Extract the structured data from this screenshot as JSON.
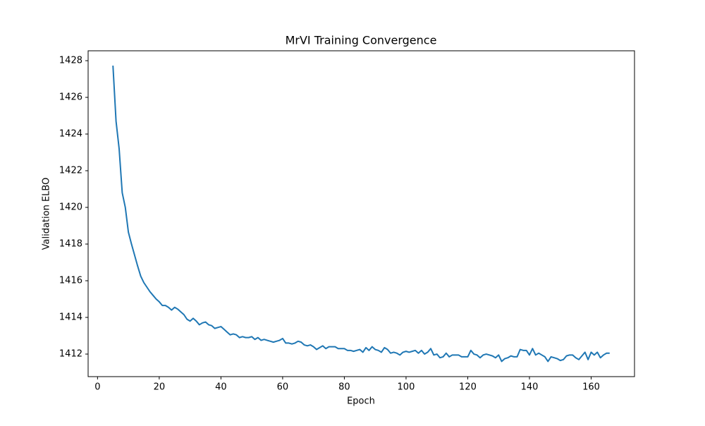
{
  "chart_data": {
    "type": "line",
    "title": "MrVI Training Convergence",
    "x_label": "Epoch",
    "y_label": "Validation ELBO",
    "color": "#1f77b4",
    "x": [
      5,
      6,
      7,
      8,
      9,
      10,
      11,
      12,
      13,
      14,
      15,
      16,
      17,
      18,
      19,
      20,
      21,
      22,
      23,
      24,
      25,
      26,
      27,
      28,
      29,
      30,
      31,
      32,
      33,
      34,
      35,
      36,
      37,
      38,
      39,
      40,
      41,
      42,
      43,
      44,
      45,
      46,
      47,
      48,
      49,
      50,
      51,
      52,
      53,
      54,
      55,
      56,
      57,
      58,
      59,
      60,
      61,
      62,
      63,
      64,
      65,
      66,
      67,
      68,
      69,
      70,
      71,
      72,
      73,
      74,
      75,
      76,
      77,
      78,
      79,
      80,
      81,
      82,
      83,
      84,
      85,
      86,
      87,
      88,
      89,
      90,
      91,
      92,
      93,
      94,
      95,
      96,
      97,
      98,
      99,
      100,
      101,
      102,
      103,
      104,
      105,
      106,
      107,
      108,
      109,
      110,
      111,
      112,
      113,
      114,
      115,
      116,
      117,
      118,
      119,
      120,
      121,
      122,
      123,
      124,
      125,
      126,
      127,
      128,
      129,
      130,
      131,
      132,
      133,
      134,
      135,
      136,
      137,
      138,
      139,
      140,
      141,
      142,
      143,
      144,
      145,
      146,
      147,
      148,
      149,
      150,
      151,
      152,
      153,
      154,
      155,
      156,
      157,
      158,
      159,
      160,
      161,
      162,
      163,
      164,
      165,
      166
    ],
    "values": [
      1427.73,
      1424.7,
      1423.2,
      1420.8,
      1420.0,
      1418.65,
      1418.0,
      1417.4,
      1416.8,
      1416.25,
      1415.9,
      1415.65,
      1415.4,
      1415.2,
      1415.0,
      1414.85,
      1414.65,
      1414.65,
      1414.55,
      1414.4,
      1414.55,
      1414.45,
      1414.3,
      1414.15,
      1413.9,
      1413.8,
      1413.95,
      1413.8,
      1413.6,
      1413.7,
      1413.75,
      1413.6,
      1413.55,
      1413.4,
      1413.45,
      1413.5,
      1413.35,
      1413.2,
      1413.05,
      1413.1,
      1413.05,
      1412.9,
      1412.95,
      1412.9,
      1412.9,
      1412.95,
      1412.8,
      1412.9,
      1412.75,
      1412.8,
      1412.75,
      1412.7,
      1412.65,
      1412.7,
      1412.75,
      1412.85,
      1412.6,
      1412.6,
      1412.55,
      1412.6,
      1412.7,
      1412.65,
      1412.5,
      1412.45,
      1412.5,
      1412.4,
      1412.25,
      1412.35,
      1412.45,
      1412.3,
      1412.4,
      1412.4,
      1412.4,
      1412.3,
      1412.3,
      1412.3,
      1412.2,
      1412.2,
      1412.15,
      1412.2,
      1412.25,
      1412.1,
      1412.35,
      1412.2,
      1412.4,
      1412.25,
      1412.2,
      1412.1,
      1412.35,
      1412.25,
      1412.05,
      1412.1,
      1412.05,
      1411.95,
      1412.1,
      1412.15,
      1412.1,
      1412.15,
      1412.2,
      1412.05,
      1412.2,
      1412.0,
      1412.1,
      1412.3,
      1411.95,
      1412.0,
      1411.8,
      1411.85,
      1412.05,
      1411.85,
      1411.95,
      1411.95,
      1411.95,
      1411.85,
      1411.85,
      1411.85,
      1412.2,
      1412.0,
      1411.95,
      1411.8,
      1411.95,
      1412.0,
      1411.95,
      1411.9,
      1411.8,
      1411.95,
      1411.6,
      1411.75,
      1411.8,
      1411.9,
      1411.85,
      1411.85,
      1412.25,
      1412.2,
      1412.2,
      1411.95,
      1412.3,
      1411.95,
      1412.05,
      1411.95,
      1411.85,
      1411.6,
      1411.85,
      1411.8,
      1411.75,
      1411.65,
      1411.7,
      1411.9,
      1411.95,
      1411.95,
      1411.8,
      1411.7,
      1411.9,
      1412.1,
      1411.7,
      1412.1,
      1411.95,
      1412.1,
      1411.8,
      1411.95,
      1412.05,
      1412.05
    ],
    "xlim": [
      -3.05,
      174.05
    ],
    "xticks": [
      0,
      20,
      40,
      60,
      80,
      100,
      120,
      140,
      160
    ],
    "ylim": [
      1410.77,
      1428.54
    ],
    "yticks": [
      1412,
      1414,
      1416,
      1418,
      1420,
      1422,
      1424,
      1426,
      1428
    ]
  }
}
